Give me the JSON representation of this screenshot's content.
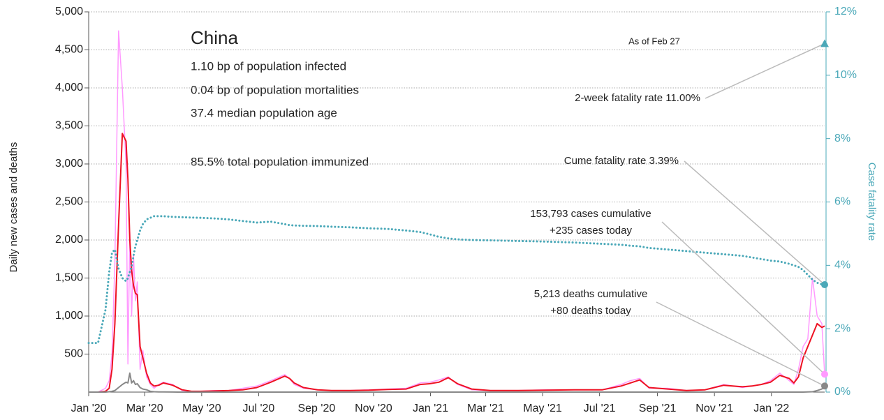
{
  "chart_data": {
    "type": "line",
    "y_label": "Daily new cases and deaths",
    "y2_label": "Case fatality rate",
    "note": "As of Feb 27",
    "info": {
      "heading": "China",
      "lines": [
        "1.10 bp of population infected",
        "0.04 bp of population mortalities",
        "37.4 median population age",
        "85.5% total population immunized"
      ]
    },
    "x": [
      0,
      10,
      18,
      22,
      25,
      28,
      32,
      36,
      40,
      42,
      44,
      46,
      48,
      50,
      52,
      55,
      58,
      62,
      66,
      70,
      75,
      80,
      90,
      100,
      110,
      120,
      135,
      150,
      165,
      180,
      195,
      210,
      215,
      220,
      230,
      245,
      260,
      280,
      300,
      320,
      340,
      355,
      365,
      375,
      385,
      395,
      410,
      430,
      460,
      490,
      520,
      550,
      570,
      580,
      590,
      600,
      620,
      640,
      660,
      680,
      700,
      710,
      720,
      730,
      740,
      750,
      755,
      760,
      765,
      770,
      775,
      780,
      785,
      788
    ],
    "xlim": [
      0,
      788
    ],
    "xticks": [
      {
        "value": 0,
        "label": "Jan '20"
      },
      {
        "value": 60,
        "label": "Mar '20"
      },
      {
        "value": 121,
        "label": "May '20"
      },
      {
        "value": 182,
        "label": "Jul '20"
      },
      {
        "value": 244,
        "label": "Sep '20"
      },
      {
        "value": 305,
        "label": "Nov '20"
      },
      {
        "value": 366,
        "label": "Jan '21"
      },
      {
        "value": 425,
        "label": "Mar '21"
      },
      {
        "value": 486,
        "label": "May '21"
      },
      {
        "value": 547,
        "label": "Jul '21"
      },
      {
        "value": 609,
        "label": "Sep '21"
      },
      {
        "value": 670,
        "label": "Nov '21"
      },
      {
        "value": 731,
        "label": "Jan '22"
      }
    ],
    "ylim": [
      0,
      5000
    ],
    "yticks": [
      500,
      {
        "value": 1000,
        "label": "1,000"
      },
      {
        "value": 1500,
        "label": "1,500"
      },
      {
        "value": 2000,
        "label": "2,000"
      },
      {
        "value": 2500,
        "label": "2,500"
      },
      {
        "value": 3000,
        "label": "3,000"
      },
      {
        "value": 3500,
        "label": "3,500"
      },
      {
        "value": 4000,
        "label": "4,000"
      },
      {
        "value": 4500,
        "label": "4,500"
      },
      {
        "value": 5000,
        "label": "5,000"
      }
    ],
    "y2lim": [
      0,
      12
    ],
    "y2ticks": [
      {
        "value": 0,
        "label": "0%"
      },
      {
        "value": 2,
        "label": "2%"
      },
      {
        "value": 4,
        "label": "4%"
      },
      {
        "value": 6,
        "label": "6%"
      },
      {
        "value": 8,
        "label": "8%"
      },
      {
        "value": 10,
        "label": "10%"
      },
      {
        "value": 12,
        "label": "12%"
      }
    ],
    "grid": true,
    "series": [
      {
        "color": "#ff99ff",
        "width": 1.5,
        "values": [
          0,
          0,
          50,
          150,
          500,
          1700,
          4750,
          4000,
          3000,
          370,
          2100,
          1000,
          1800,
          1200,
          1450,
          300,
          550,
          200,
          100,
          50,
          100,
          130,
          100,
          20,
          10,
          10,
          20,
          20,
          50,
          80,
          150,
          230,
          180,
          100,
          50,
          30,
          20,
          20,
          30,
          40,
          50,
          120,
          130,
          160,
          200,
          100,
          30,
          20,
          20,
          30,
          30,
          30,
          100,
          150,
          180,
          50,
          50,
          20,
          30,
          100,
          60,
          80,
          100,
          150,
          250,
          150,
          100,
          300,
          600,
          700,
          1500,
          1000,
          900,
          235
        ]
      },
      {
        "color": "#ee1122",
        "width": 2,
        "values": [
          0,
          0,
          10,
          50,
          300,
          900,
          2200,
          3400,
          3300,
          2800,
          2000,
          1600,
          1400,
          1300,
          1280,
          600,
          450,
          250,
          120,
          80,
          90,
          120,
          90,
          30,
          10,
          10,
          15,
          20,
          30,
          60,
          130,
          210,
          180,
          120,
          60,
          30,
          20,
          20,
          25,
          35,
          40,
          100,
          110,
          130,
          190,
          110,
          40,
          20,
          20,
          25,
          30,
          30,
          80,
          120,
          160,
          60,
          40,
          20,
          30,
          90,
          70,
          80,
          100,
          130,
          220,
          180,
          120,
          200,
          450,
          600,
          750,
          900,
          850,
          870
        ]
      },
      {
        "color": "#888888",
        "width": 2,
        "values": [
          0,
          0,
          0,
          5,
          10,
          20,
          60,
          100,
          130,
          120,
          250,
          120,
          150,
          100,
          110,
          60,
          40,
          30,
          10,
          5,
          2,
          2,
          1,
          0,
          0,
          0,
          0,
          0,
          0,
          0,
          0,
          0,
          0,
          0,
          0,
          0,
          0,
          0,
          0,
          0,
          0,
          0,
          0,
          0,
          0,
          0,
          0,
          0,
          0,
          0,
          0,
          0,
          0,
          0,
          0,
          0,
          0,
          0,
          0,
          0,
          0,
          0,
          0,
          0,
          0,
          0,
          0,
          0,
          0,
          2,
          5,
          20,
          40,
          80
        ]
      },
      {
        "color": "#4aa8b8",
        "width": 3,
        "dash": "dotted",
        "axis": "y2",
        "values": [
          1.55,
          1.55,
          2.6,
          3.8,
          4.4,
          4.5,
          3.9,
          3.6,
          3.5,
          3.6,
          3.8,
          3.95,
          4.3,
          4.6,
          4.8,
          5.1,
          5.3,
          5.45,
          5.5,
          5.55,
          5.55,
          5.55,
          5.53,
          5.52,
          5.51,
          5.5,
          5.48,
          5.45,
          5.4,
          5.35,
          5.38,
          5.3,
          5.27,
          5.26,
          5.25,
          5.24,
          5.22,
          5.2,
          5.17,
          5.15,
          5.1,
          5.05,
          4.98,
          4.9,
          4.85,
          4.82,
          4.8,
          4.79,
          4.77,
          4.75,
          4.72,
          4.68,
          4.65,
          4.62,
          4.6,
          4.55,
          4.5,
          4.45,
          4.4,
          4.35,
          4.3,
          4.25,
          4.2,
          4.15,
          4.12,
          4.05,
          4.0,
          3.95,
          3.85,
          3.7,
          3.55,
          3.45,
          3.4,
          3.39
        ]
      }
    ],
    "annotations": [
      {
        "lines": [
          "2-week fatality rate 11.00%"
        ],
        "value": 11,
        "axis": "y2",
        "marker": "triangle",
        "color": "#4aa8b8"
      },
      {
        "lines": [
          "Cume fatality rate 3.39%"
        ],
        "value": 3.39,
        "axis": "y2",
        "marker": "circle",
        "color": "#4aa8b8"
      },
      {
        "lines": [
          "153,793 cases cumulative",
          "+235 cases today"
        ],
        "value": 235,
        "marker": "circle",
        "color": "#ff99ff"
      },
      {
        "lines": [
          "5,213 deaths cumulative",
          "+80 deaths today"
        ],
        "value": 80,
        "marker": "circle",
        "color": "#888888"
      }
    ]
  }
}
